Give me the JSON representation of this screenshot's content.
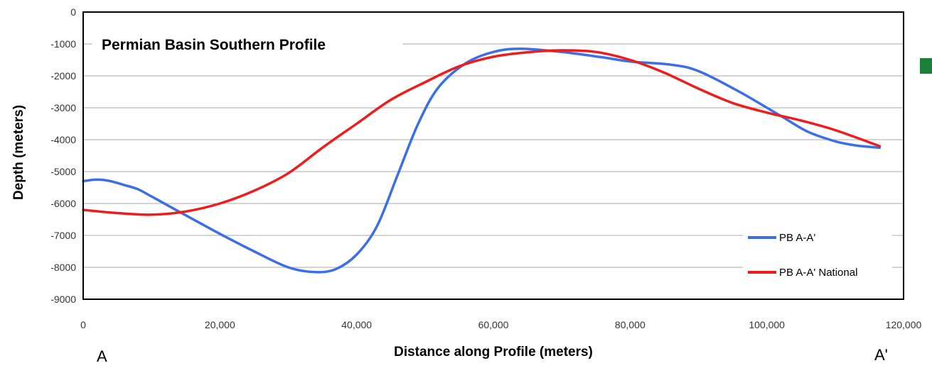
{
  "chart_data": {
    "type": "line",
    "title": "Permian Basin Southern Profile",
    "xlabel": "Distance along Profile (meters)",
    "ylabel": "Depth (meters)",
    "xlim": [
      0,
      120000
    ],
    "ylim": [
      -9000,
      0
    ],
    "x_ticks": [
      0,
      20000,
      40000,
      60000,
      80000,
      100000,
      120000
    ],
    "x_tick_labels": [
      "0",
      "20,000",
      "40,000",
      "60,000",
      "80,000",
      "100,000",
      "120,000"
    ],
    "y_ticks": [
      0,
      -1000,
      -2000,
      -3000,
      -4000,
      -5000,
      -6000,
      -7000,
      -8000,
      -9000
    ],
    "y_tick_labels": [
      "0",
      "-1000",
      "-2000",
      "-3000",
      "-4000",
      "-5000",
      "-6000",
      "-7000",
      "-8000",
      "-9000"
    ],
    "grid": "horizontal",
    "legend_position": "bottom-right",
    "endpoint_labels": {
      "left": "A",
      "right": "A'"
    },
    "series": [
      {
        "name": "PB A-A'",
        "color": "#3b6fe8",
        "points": [
          [
            0,
            -5300
          ],
          [
            2000,
            -5250
          ],
          [
            4000,
            -5300
          ],
          [
            6000,
            -5420
          ],
          [
            8000,
            -5550
          ],
          [
            10000,
            -5780
          ],
          [
            14000,
            -6250
          ],
          [
            20000,
            -6950
          ],
          [
            25000,
            -7500
          ],
          [
            30000,
            -8000
          ],
          [
            34000,
            -8150
          ],
          [
            37000,
            -8050
          ],
          [
            40000,
            -7600
          ],
          [
            43000,
            -6700
          ],
          [
            46000,
            -5100
          ],
          [
            49000,
            -3500
          ],
          [
            52000,
            -2350
          ],
          [
            56000,
            -1600
          ],
          [
            60000,
            -1250
          ],
          [
            64000,
            -1150
          ],
          [
            70000,
            -1250
          ],
          [
            76000,
            -1420
          ],
          [
            80000,
            -1550
          ],
          [
            86000,
            -1650
          ],
          [
            90000,
            -1850
          ],
          [
            96000,
            -2500
          ],
          [
            102000,
            -3250
          ],
          [
            106000,
            -3750
          ],
          [
            110000,
            -4050
          ],
          [
            113000,
            -4180
          ],
          [
            116500,
            -4250
          ]
        ]
      },
      {
        "name": "PB A-A' National",
        "color": "#ee1c1c",
        "points": [
          [
            0,
            -6200
          ],
          [
            5000,
            -6300
          ],
          [
            10000,
            -6350
          ],
          [
            15000,
            -6250
          ],
          [
            20000,
            -6000
          ],
          [
            25000,
            -5600
          ],
          [
            30000,
            -5050
          ],
          [
            35000,
            -4250
          ],
          [
            40000,
            -3500
          ],
          [
            45000,
            -2750
          ],
          [
            50000,
            -2200
          ],
          [
            55000,
            -1700
          ],
          [
            60000,
            -1400
          ],
          [
            65000,
            -1260
          ],
          [
            70000,
            -1200
          ],
          [
            75000,
            -1250
          ],
          [
            80000,
            -1500
          ],
          [
            85000,
            -1900
          ],
          [
            90000,
            -2400
          ],
          [
            95000,
            -2850
          ],
          [
            100000,
            -3150
          ],
          [
            105000,
            -3400
          ],
          [
            110000,
            -3700
          ],
          [
            116500,
            -4200
          ]
        ]
      }
    ]
  },
  "legend_box_color": "#1a7f37"
}
